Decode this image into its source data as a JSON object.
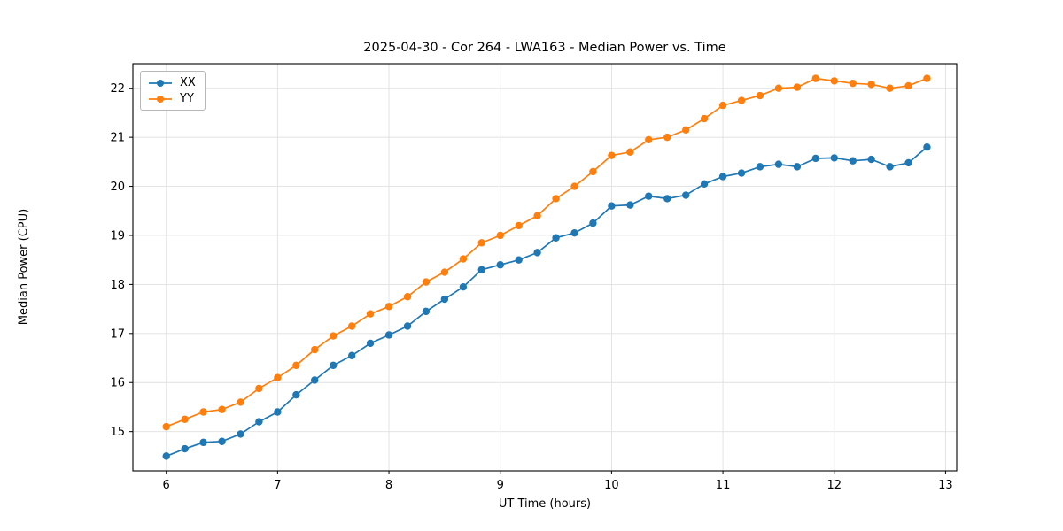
{
  "chart_data": {
    "type": "line",
    "title": "2025-04-30 - Cor 264 - LWA163 - Median Power vs. Time",
    "xlabel": "UT Time (hours)",
    "ylabel": "Median Power (CPU)",
    "xlim": [
      5.7,
      13.1
    ],
    "ylim": [
      14.2,
      22.5
    ],
    "x_ticks": [
      6,
      7,
      8,
      9,
      10,
      11,
      12,
      13
    ],
    "y_ticks": [
      15,
      16,
      17,
      18,
      19,
      20,
      21,
      22
    ],
    "grid": true,
    "legend_position": "upper-left",
    "marker": "circle",
    "x": [
      6.0,
      6.167,
      6.333,
      6.5,
      6.667,
      6.833,
      7.0,
      7.167,
      7.333,
      7.5,
      7.667,
      7.833,
      8.0,
      8.167,
      8.333,
      8.5,
      8.667,
      8.833,
      9.0,
      9.167,
      9.333,
      9.5,
      9.667,
      9.833,
      10.0,
      10.167,
      10.333,
      10.5,
      10.667,
      10.833,
      11.0,
      11.167,
      11.333,
      11.5,
      11.667,
      11.833,
      12.0,
      12.167,
      12.333,
      12.5,
      12.667,
      12.833
    ],
    "series": [
      {
        "name": "XX",
        "color": "#1f77b4",
        "values": [
          14.5,
          14.65,
          14.78,
          14.8,
          14.95,
          15.2,
          15.4,
          15.75,
          16.05,
          16.35,
          16.55,
          16.8,
          16.97,
          17.15,
          17.45,
          17.7,
          17.95,
          18.3,
          18.4,
          18.5,
          18.65,
          18.95,
          19.05,
          19.25,
          19.6,
          19.62,
          19.8,
          19.75,
          19.82,
          20.05,
          20.2,
          20.27,
          20.4,
          20.45,
          20.4,
          20.57,
          20.58,
          20.52,
          20.55,
          20.4,
          20.48,
          20.8
        ]
      },
      {
        "name": "YY",
        "color": "#ff7f0e",
        "values": [
          15.1,
          15.25,
          15.4,
          15.45,
          15.6,
          15.88,
          16.1,
          16.35,
          16.67,
          16.95,
          17.15,
          17.4,
          17.55,
          17.75,
          18.05,
          18.25,
          18.52,
          18.85,
          19.0,
          19.2,
          19.4,
          19.75,
          20.0,
          20.3,
          20.63,
          20.7,
          20.95,
          21.0,
          21.15,
          21.38,
          21.65,
          21.75,
          21.85,
          22.0,
          22.02,
          22.2,
          22.15,
          22.1,
          22.08,
          22.0,
          22.05,
          22.2
        ]
      }
    ]
  }
}
